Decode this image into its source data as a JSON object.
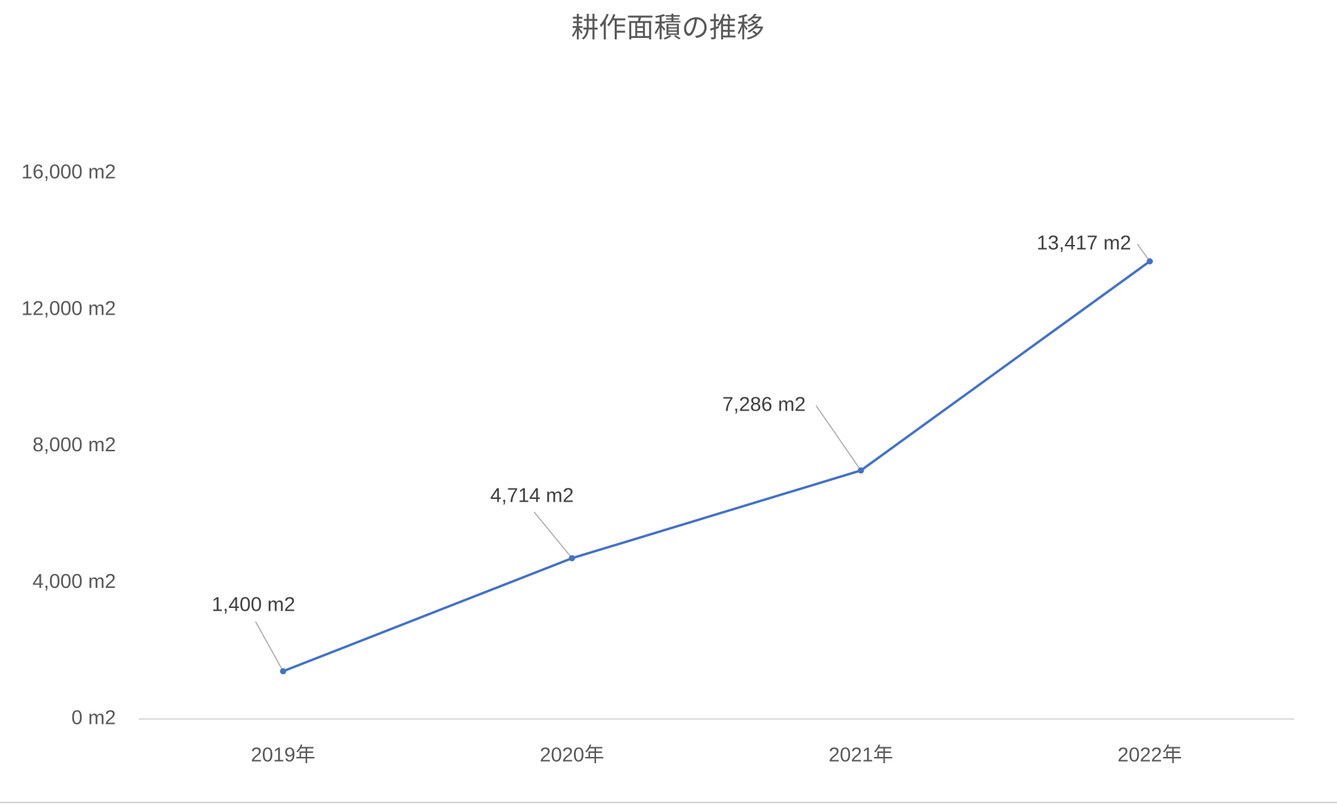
{
  "chart_data": {
    "type": "line",
    "title": "耕作面積の推移",
    "categories": [
      "2019年",
      "2020年",
      "2021年",
      "2022年"
    ],
    "values": [
      1400,
      4714,
      7286,
      13417
    ],
    "value_labels": [
      "1,400 m2",
      "4,714 m2",
      "7,286 m2",
      "13,417 m2"
    ],
    "color": "#4472c4",
    "ylim": [
      0,
      16000
    ],
    "yticks": [
      {
        "value": 0,
        "label": "0 m2"
      },
      {
        "value": 4000,
        "label": "4,000 m2"
      },
      {
        "value": 8000,
        "label": "8,000 m2"
      },
      {
        "value": 12000,
        "label": "12,000 m2"
      },
      {
        "value": 16000,
        "label": "16,000 m2"
      }
    ],
    "grid": false
  }
}
